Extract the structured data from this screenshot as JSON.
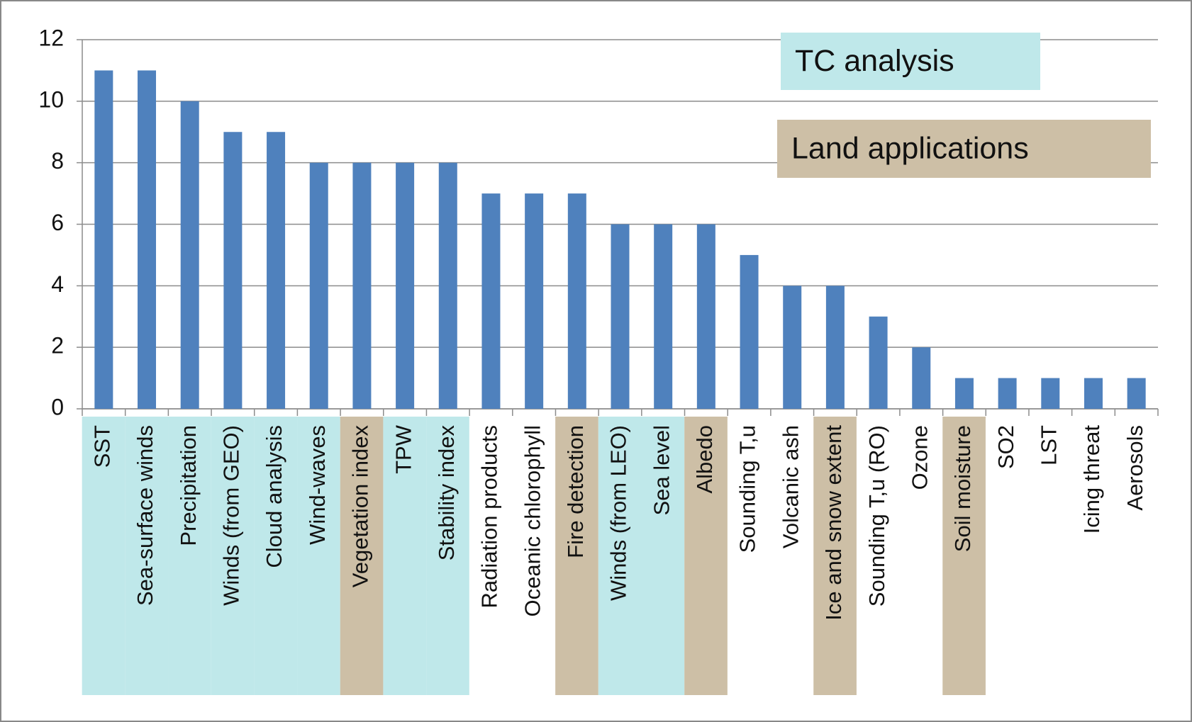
{
  "chart_data": {
    "type": "bar",
    "categories": [
      "SST",
      "Sea-surface winds",
      "Precipitation",
      "Winds (from GEO)",
      "Cloud analysis",
      "Wind-waves",
      "Vegetation index",
      "TPW",
      "Stability index",
      "Radiation products",
      "Oceanic chlorophyll",
      "Fire detection",
      "Winds (from LEO)",
      "Sea level",
      "Albedo",
      "Sounding T,u",
      "Volcanic ash",
      "Ice and snow extent",
      "Sounding T,u (RO)",
      "Ozone",
      "Soil moisture",
      "SO2",
      "LST",
      "Icing threat",
      "Aerosols"
    ],
    "values": [
      11,
      11,
      10,
      9,
      9,
      8,
      8,
      8,
      8,
      7,
      7,
      7,
      6,
      6,
      6,
      5,
      4,
      4,
      3,
      2,
      1,
      1,
      1,
      1,
      1
    ],
    "color": "#4f81bd",
    "ylim": [
      0,
      12
    ],
    "yticks": [
      0,
      2,
      4,
      6,
      8,
      10,
      12
    ],
    "grid": true,
    "legend": [
      {
        "name": "TC analysis",
        "color": "#bfe8ea"
      },
      {
        "name": "Land applications",
        "color": "#cdbfa6"
      }
    ],
    "label_backgrounds": [
      "#bfe8ea",
      "#bfe8ea",
      "#bfe8ea",
      "#bfe8ea",
      "#bfe8ea",
      "#bfe8ea",
      "#cdbfa6",
      "#bfe8ea",
      "#bfe8ea",
      null,
      null,
      "#cdbfa6",
      "#bfe8ea",
      "#bfe8ea",
      "#cdbfa6",
      null,
      null,
      "#cdbfa6",
      null,
      null,
      "#cdbfa6",
      null,
      null,
      null,
      null
    ]
  }
}
